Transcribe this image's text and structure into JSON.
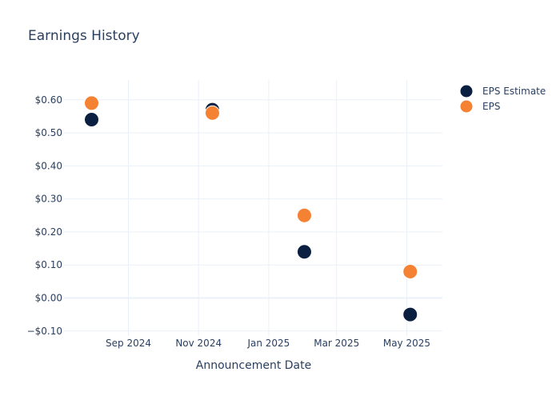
{
  "chart_data": {
    "type": "scatter",
    "title": "Earnings History",
    "xlabel": "Announcement Date",
    "ylabel": "",
    "x_axis_type": "date",
    "xlim": [
      "2024-07-07",
      "2025-06-01"
    ],
    "ylim": [
      -0.115,
      0.66
    ],
    "x_ticks": [
      {
        "value": "2024-09-01",
        "label": "Sep 2024"
      },
      {
        "value": "2024-11-01",
        "label": "Nov 2024"
      },
      {
        "value": "2025-01-01",
        "label": "Jan 2025"
      },
      {
        "value": "2025-03-01",
        "label": "Mar 2025"
      },
      {
        "value": "2025-05-01",
        "label": "May 2025"
      }
    ],
    "y_ticks": [
      {
        "value": -0.1,
        "label": "−$0.10"
      },
      {
        "value": 0,
        "label": "$0.00"
      },
      {
        "value": 0.1,
        "label": "$0.10"
      },
      {
        "value": 0.2,
        "label": "$0.20"
      },
      {
        "value": 0.3,
        "label": "$0.30"
      },
      {
        "value": 0.4,
        "label": "$0.40"
      },
      {
        "value": 0.5,
        "label": "$0.50"
      },
      {
        "value": 0.6,
        "label": "$0.60"
      }
    ],
    "grid": true,
    "legend_position": "top-right",
    "series": [
      {
        "name": "EPS Estimate",
        "color": "#0b1f41",
        "points": [
          {
            "x": "2024-07-31",
            "y": 0.54
          },
          {
            "x": "2024-11-13",
            "y": 0.57
          },
          {
            "x": "2025-02-01",
            "y": 0.14
          },
          {
            "x": "2025-05-04",
            "y": -0.05
          }
        ]
      },
      {
        "name": "EPS",
        "color": "#f58133",
        "points": [
          {
            "x": "2024-07-31",
            "y": 0.59
          },
          {
            "x": "2024-11-13",
            "y": 0.56
          },
          {
            "x": "2025-02-01",
            "y": 0.25
          },
          {
            "x": "2025-05-04",
            "y": 0.08
          }
        ]
      }
    ]
  }
}
